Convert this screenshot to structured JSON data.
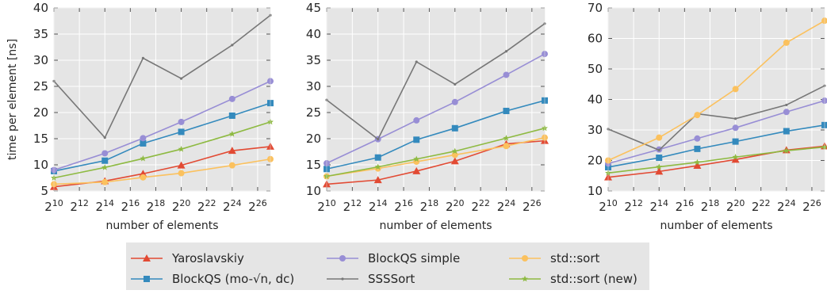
{
  "colors": {
    "plot_bg": "#e5e5e5",
    "grid": "#ffffff",
    "legend_bg": "#e5e5e5"
  },
  "legend": {
    "entries": [
      {
        "label": "Yaroslavskiy",
        "color": "#e24a33",
        "marker": "triangle"
      },
      {
        "label": "BlockQS (mo-√n, dc)",
        "color": "#348abd",
        "marker": "square"
      },
      {
        "label": "BlockQS simple",
        "color": "#988ed5",
        "marker": "circle"
      },
      {
        "label": "SSSSort",
        "color": "#777777",
        "marker": "dot"
      },
      {
        "label": "std::sort",
        "color": "#fbc15e",
        "marker": "circle"
      },
      {
        "label": "std::sort (new)",
        "color": "#8eba42",
        "marker": "star"
      }
    ]
  },
  "chart_data": [
    {
      "type": "line",
      "xlabel": "number of elements",
      "ylabel": "time per element [ns]",
      "x_scale": "log2",
      "x_ticks": [
        10,
        12,
        14,
        16,
        18,
        20,
        22,
        24,
        26
      ],
      "x_tick_labels": [
        "2^10",
        "2^12",
        "2^14",
        "2^16",
        "2^18",
        "2^20",
        "2^22",
        "2^24",
        "2^26"
      ],
      "xlim_exp": [
        10,
        27
      ],
      "ylim": [
        5,
        40
      ],
      "y_ticks": [
        5,
        10,
        15,
        20,
        25,
        30,
        35,
        40
      ],
      "grid": true,
      "x_exp": [
        10,
        14,
        17,
        20,
        24,
        27
      ],
      "series": [
        {
          "name": "Yaroslavskiy",
          "values": [
            5.8,
            6.9,
            8.3,
            9.9,
            12.7,
            13.5
          ]
        },
        {
          "name": "BlockQS (mo-√n, dc)",
          "values": [
            8.8,
            10.8,
            14.1,
            16.3,
            19.4,
            21.8
          ]
        },
        {
          "name": "BlockQS simple",
          "values": [
            9.0,
            12.2,
            15.1,
            18.2,
            22.6,
            26.0
          ]
        },
        {
          "name": "SSSSort",
          "values": [
            26.0,
            15.2,
            30.4,
            26.5,
            32.9,
            38.6
          ]
        },
        {
          "name": "std::sort",
          "values": [
            6.3,
            6.7,
            7.6,
            8.4,
            9.9,
            11.1
          ]
        },
        {
          "name": "std::sort (new)",
          "values": [
            7.5,
            9.5,
            11.2,
            13.0,
            15.9,
            18.2
          ]
        }
      ]
    },
    {
      "type": "line",
      "xlabel": "number of elements",
      "ylabel": "",
      "x_scale": "log2",
      "x_ticks": [
        10,
        12,
        14,
        16,
        18,
        20,
        22,
        24,
        26
      ],
      "x_tick_labels": [
        "2^10",
        "2^12",
        "2^14",
        "2^16",
        "2^18",
        "2^20",
        "2^22",
        "2^24",
        "2^26"
      ],
      "xlim_exp": [
        10,
        27
      ],
      "ylim": [
        10,
        45
      ],
      "y_ticks": [
        10,
        15,
        20,
        25,
        30,
        35,
        40,
        45
      ],
      "grid": true,
      "x_exp": [
        10,
        14,
        17,
        20,
        24,
        27
      ],
      "series": [
        {
          "name": "Yaroslavskiy",
          "values": [
            11.3,
            12.1,
            13.8,
            15.7,
            19.0,
            19.6
          ]
        },
        {
          "name": "BlockQS (mo-√n, dc)",
          "values": [
            14.2,
            16.4,
            19.8,
            22.0,
            25.3,
            27.3
          ]
        },
        {
          "name": "BlockQS simple",
          "values": [
            15.3,
            19.9,
            23.5,
            27.0,
            32.2,
            36.2
          ]
        },
        {
          "name": "SSSSort",
          "values": [
            27.4,
            19.9,
            34.7,
            30.4,
            36.7,
            42.0
          ]
        },
        {
          "name": "std::sort",
          "values": [
            12.8,
            14.3,
            15.6,
            16.9,
            18.6,
            20.2
          ]
        },
        {
          "name": "std::sort (new)",
          "values": [
            12.8,
            14.6,
            16.1,
            17.6,
            20.1,
            22.0
          ]
        }
      ]
    },
    {
      "type": "line",
      "xlabel": "number of elements",
      "ylabel": "",
      "x_scale": "log2",
      "x_ticks": [
        10,
        12,
        14,
        16,
        18,
        20,
        22,
        24,
        26
      ],
      "x_tick_labels": [
        "2^10",
        "2^12",
        "2^14",
        "2^16",
        "2^18",
        "2^20",
        "2^22",
        "2^24",
        "2^26"
      ],
      "xlim_exp": [
        10,
        27
      ],
      "ylim": [
        10,
        70
      ],
      "y_ticks": [
        10,
        20,
        30,
        40,
        50,
        60,
        70
      ],
      "grid": true,
      "x_exp": [
        10,
        14,
        17,
        20,
        24,
        27
      ],
      "series": [
        {
          "name": "Yaroslavskiy",
          "values": [
            14.5,
            16.4,
            18.3,
            20.3,
            23.4,
            24.7
          ]
        },
        {
          "name": "BlockQS (mo-√n, dc)",
          "values": [
            17.8,
            20.9,
            23.8,
            26.2,
            29.6,
            31.6
          ]
        },
        {
          "name": "BlockQS simple",
          "values": [
            19.0,
            23.6,
            27.2,
            30.7,
            35.9,
            39.6
          ]
        },
        {
          "name": "SSSSort",
          "values": [
            30.3,
            23.4,
            35.3,
            33.7,
            38.2,
            44.5
          ]
        },
        {
          "name": "std::sort",
          "values": [
            20.0,
            27.5,
            34.9,
            43.4,
            58.6,
            65.8
          ]
        },
        {
          "name": "std::sort (new)",
          "values": [
            15.9,
            17.9,
            19.4,
            21.1,
            23.2,
            24.4
          ]
        }
      ]
    }
  ]
}
